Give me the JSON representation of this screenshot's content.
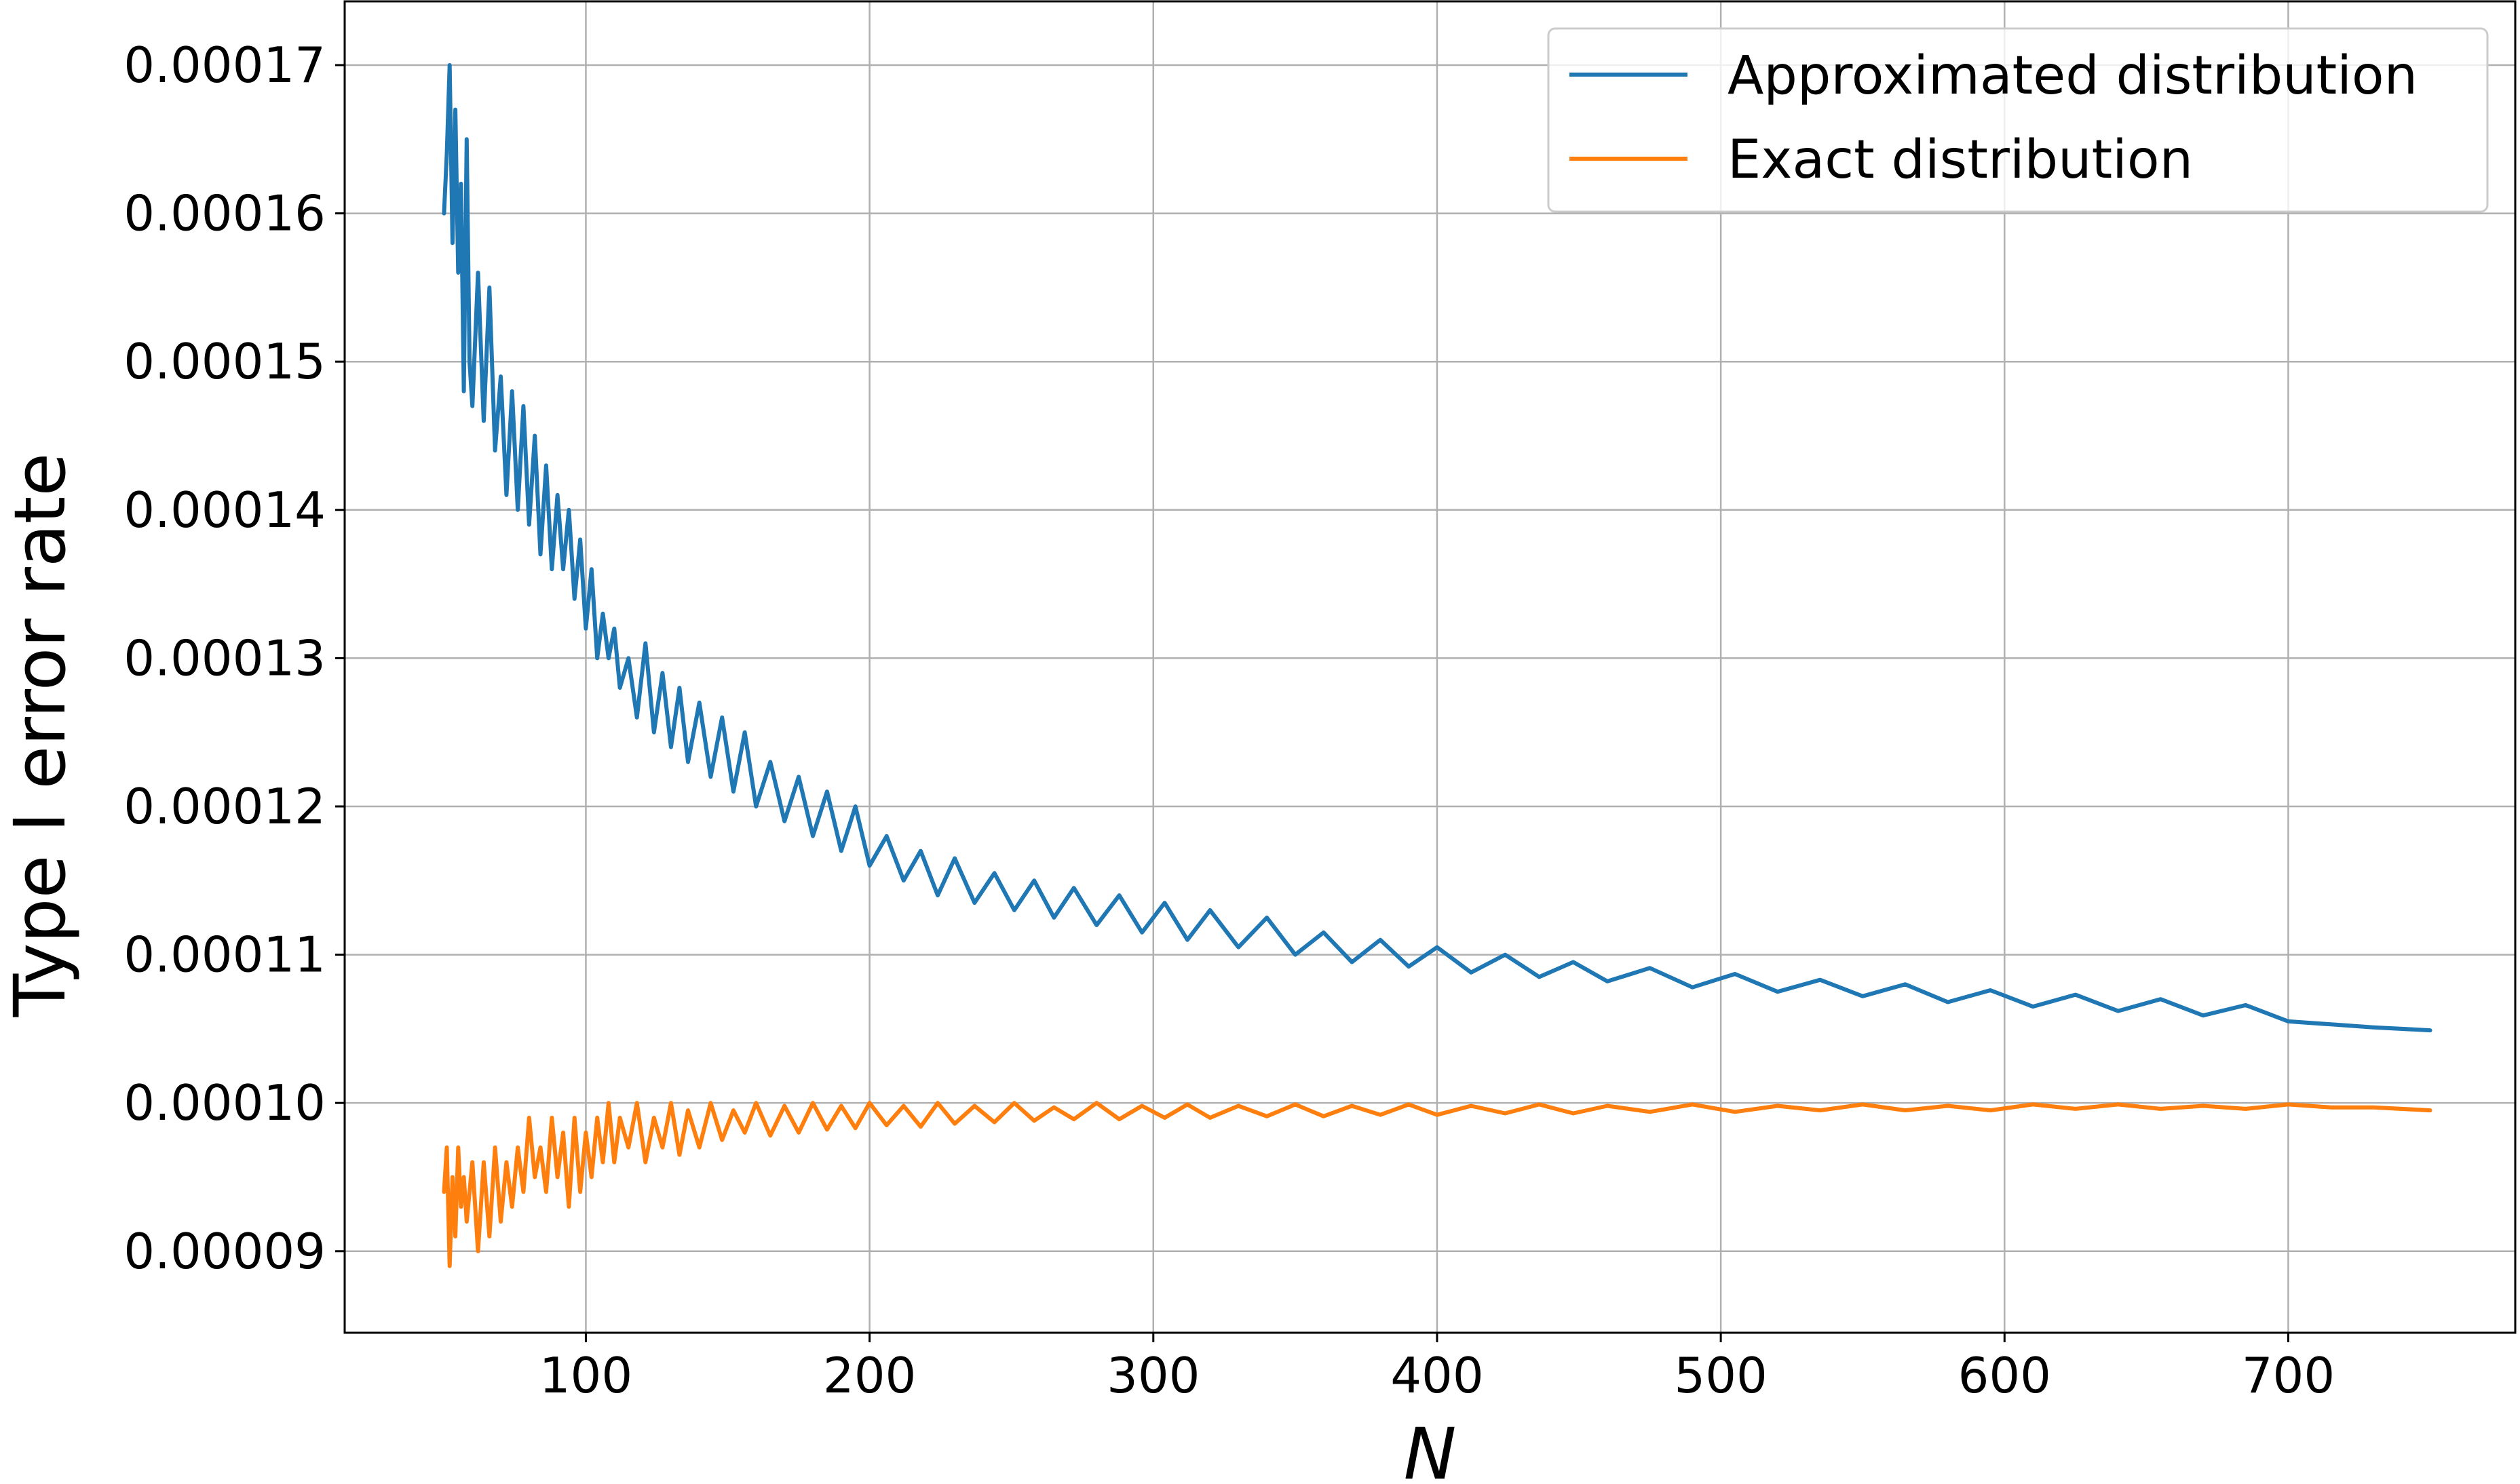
{
  "chart_data": {
    "type": "line",
    "xlabel": "N",
    "ylabel": "Type I error rate",
    "xlim": [
      15,
      780
    ],
    "ylim": [
      8.45e-05,
      0.0001743
    ],
    "xticks": [
      100,
      200,
      300,
      400,
      500,
      600,
      700
    ],
    "xtick_labels": [
      "100",
      "200",
      "300",
      "400",
      "500",
      "600",
      "700"
    ],
    "yticks": [
      9e-05,
      0.0001,
      0.00011,
      0.00012,
      0.00013,
      0.00014,
      0.00015,
      0.00016,
      0.00017
    ],
    "ytick_labels": [
      "0.00009",
      "0.00010",
      "0.00011",
      "0.00012",
      "0.00013",
      "0.00014",
      "0.00015",
      "0.00016",
      "0.00017"
    ],
    "grid": true,
    "legend": {
      "placement": "top-right",
      "entries": [
        "Approximated distribution",
        "Exact distribution"
      ]
    },
    "series": [
      {
        "name": "Approximated distribution",
        "color": "#1f77b4",
        "x": [
          50,
          51,
          52,
          53,
          54,
          55,
          56,
          57,
          58,
          59,
          60,
          62,
          64,
          66,
          68,
          70,
          72,
          74,
          76,
          78,
          80,
          82,
          84,
          86,
          88,
          90,
          92,
          94,
          96,
          98,
          100,
          102,
          104,
          106,
          108,
          110,
          112,
          115,
          118,
          121,
          124,
          127,
          130,
          133,
          136,
          140,
          144,
          148,
          152,
          156,
          160,
          165,
          170,
          175,
          180,
          185,
          190,
          195,
          200,
          206,
          212,
          218,
          224,
          230,
          237,
          244,
          251,
          258,
          265,
          272,
          280,
          288,
          296,
          304,
          312,
          320,
          330,
          340,
          350,
          360,
          370,
          380,
          390,
          400,
          412,
          424,
          436,
          448,
          460,
          475,
          490,
          505,
          520,
          535,
          550,
          565,
          580,
          595,
          610,
          625,
          640,
          655,
          670,
          685,
          700,
          715,
          730,
          750
        ],
        "y": [
          0.00016,
          0.000164,
          0.00017,
          0.000158,
          0.000167,
          0.000156,
          0.000162,
          0.000148,
          0.000165,
          0.00015,
          0.000147,
          0.000156,
          0.000146,
          0.000155,
          0.000144,
          0.000149,
          0.000141,
          0.000148,
          0.00014,
          0.000147,
          0.000139,
          0.000145,
          0.000137,
          0.000143,
          0.000136,
          0.000141,
          0.000136,
          0.00014,
          0.000134,
          0.000138,
          0.000132,
          0.000136,
          0.00013,
          0.000133,
          0.00013,
          0.000132,
          0.000128,
          0.00013,
          0.000126,
          0.000131,
          0.000125,
          0.000129,
          0.000124,
          0.000128,
          0.000123,
          0.000127,
          0.000122,
          0.000126,
          0.000121,
          0.000125,
          0.00012,
          0.000123,
          0.000119,
          0.000122,
          0.000118,
          0.000121,
          0.000117,
          0.00012,
          0.000116,
          0.000118,
          0.000115,
          0.000117,
          0.000114,
          0.0001165,
          0.0001135,
          0.0001155,
          0.000113,
          0.000115,
          0.0001125,
          0.0001145,
          0.000112,
          0.000114,
          0.0001115,
          0.0001135,
          0.000111,
          0.000113,
          0.0001105,
          0.0001125,
          0.00011,
          0.0001115,
          0.0001095,
          0.000111,
          0.0001092,
          0.0001105,
          0.0001088,
          0.00011,
          0.0001085,
          0.0001095,
          0.0001082,
          0.0001091,
          0.0001078,
          0.0001087,
          0.0001075,
          0.0001083,
          0.0001072,
          0.000108,
          0.0001068,
          0.0001076,
          0.0001065,
          0.0001073,
          0.0001062,
          0.000107,
          0.0001059,
          0.0001066,
          0.0001055,
          0.0001053,
          0.0001051,
          0.0001049
        ]
      },
      {
        "name": "Exact distribution",
        "color": "#ff7f0e",
        "x": [
          50,
          51,
          52,
          53,
          54,
          55,
          56,
          57,
          58,
          59,
          60,
          62,
          64,
          66,
          68,
          70,
          72,
          74,
          76,
          78,
          80,
          82,
          84,
          86,
          88,
          90,
          92,
          94,
          96,
          98,
          100,
          102,
          104,
          106,
          108,
          110,
          112,
          115,
          118,
          121,
          124,
          127,
          130,
          133,
          136,
          140,
          144,
          148,
          152,
          156,
          160,
          165,
          170,
          175,
          180,
          185,
          190,
          195,
          200,
          206,
          212,
          218,
          224,
          230,
          237,
          244,
          251,
          258,
          265,
          272,
          280,
          288,
          296,
          304,
          312,
          320,
          330,
          340,
          350,
          360,
          370,
          380,
          390,
          400,
          412,
          424,
          436,
          448,
          460,
          475,
          490,
          505,
          520,
          535,
          550,
          565,
          580,
          595,
          610,
          625,
          640,
          655,
          670,
          685,
          700,
          715,
          730,
          750
        ],
        "y": [
          9.4e-05,
          9.7e-05,
          8.9e-05,
          9.5e-05,
          9.1e-05,
          9.7e-05,
          9.3e-05,
          9.5e-05,
          9.2e-05,
          9.4e-05,
          9.6e-05,
          9e-05,
          9.6e-05,
          9.1e-05,
          9.7e-05,
          9.2e-05,
          9.6e-05,
          9.3e-05,
          9.7e-05,
          9.4e-05,
          9.9e-05,
          9.5e-05,
          9.7e-05,
          9.4e-05,
          9.9e-05,
          9.5e-05,
          9.8e-05,
          9.3e-05,
          9.9e-05,
          9.4e-05,
          9.8e-05,
          9.5e-05,
          9.9e-05,
          9.6e-05,
          0.0001,
          9.6e-05,
          9.9e-05,
          9.7e-05,
          0.0001,
          9.6e-05,
          9.9e-05,
          9.7e-05,
          0.0001,
          9.65e-05,
          9.95e-05,
          9.7e-05,
          0.0001,
          9.75e-05,
          9.95e-05,
          9.8e-05,
          0.0001,
          9.78e-05,
          9.98e-05,
          9.8e-05,
          0.0001,
          9.82e-05,
          9.98e-05,
          9.83e-05,
          0.0001,
          9.85e-05,
          9.98e-05,
          9.84e-05,
          0.0001,
          9.86e-05,
          9.98e-05,
          9.87e-05,
          0.0001,
          9.88e-05,
          9.97e-05,
          9.89e-05,
          0.0001,
          9.89e-05,
          9.98e-05,
          9.9e-05,
          9.99e-05,
          9.9e-05,
          9.98e-05,
          9.91e-05,
          9.99e-05,
          9.91e-05,
          9.98e-05,
          9.92e-05,
          9.99e-05,
          9.92e-05,
          9.98e-05,
          9.93e-05,
          9.99e-05,
          9.93e-05,
          9.98e-05,
          9.94e-05,
          9.99e-05,
          9.94e-05,
          9.98e-05,
          9.95e-05,
          9.99e-05,
          9.95e-05,
          9.98e-05,
          9.95e-05,
          9.99e-05,
          9.96e-05,
          9.99e-05,
          9.96e-05,
          9.98e-05,
          9.96e-05,
          9.99e-05,
          9.97e-05,
          9.97e-05,
          9.95e-05
        ]
      }
    ]
  }
}
